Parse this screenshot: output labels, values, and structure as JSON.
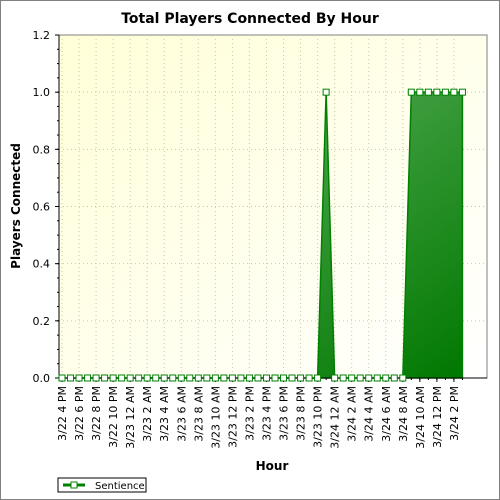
{
  "chart_data": {
    "type": "area",
    "title": "Total Players Connected By Hour",
    "xlabel": "Hour",
    "ylabel": "Players Connected",
    "ylim": [
      0,
      1.2
    ],
    "yticks": [
      "0.0",
      "0.2",
      "0.4",
      "0.6",
      "0.8",
      "1.0",
      "1.2"
    ],
    "xtick_labels": [
      "3/22 4 PM",
      "3/22 6 PM",
      "3/22 8 PM",
      "3/22 10 PM",
      "3/23 12 AM",
      "3/23 2 AM",
      "3/23 4 AM",
      "3/23 6 AM",
      "3/23 8 AM",
      "3/23 10 AM",
      "3/23 12 PM",
      "3/23 2 PM",
      "3/23 4 PM",
      "3/23 6 PM",
      "3/23 8 PM",
      "3/23 10 PM",
      "3/24 12 AM",
      "3/24 2 AM",
      "3/24 4 AM",
      "3/24 6 AM",
      "3/24 8 AM",
      "3/24 10 AM",
      "3/24 12 PM",
      "3/24 2 PM"
    ],
    "grid": true,
    "legend_position": "bottom-left",
    "series": [
      {
        "name": "Sentience",
        "color": "#008000",
        "values": [
          0,
          0,
          0,
          0,
          0,
          0,
          0,
          0,
          0,
          0,
          0,
          0,
          0,
          0,
          0,
          0,
          0,
          0,
          0,
          0,
          0,
          0,
          0,
          0,
          0,
          0,
          0,
          0,
          0,
          0,
          0,
          1,
          0,
          0,
          0,
          0,
          0,
          0,
          0,
          0,
          0,
          1,
          1,
          1,
          1,
          1,
          1,
          1
        ]
      }
    ]
  }
}
